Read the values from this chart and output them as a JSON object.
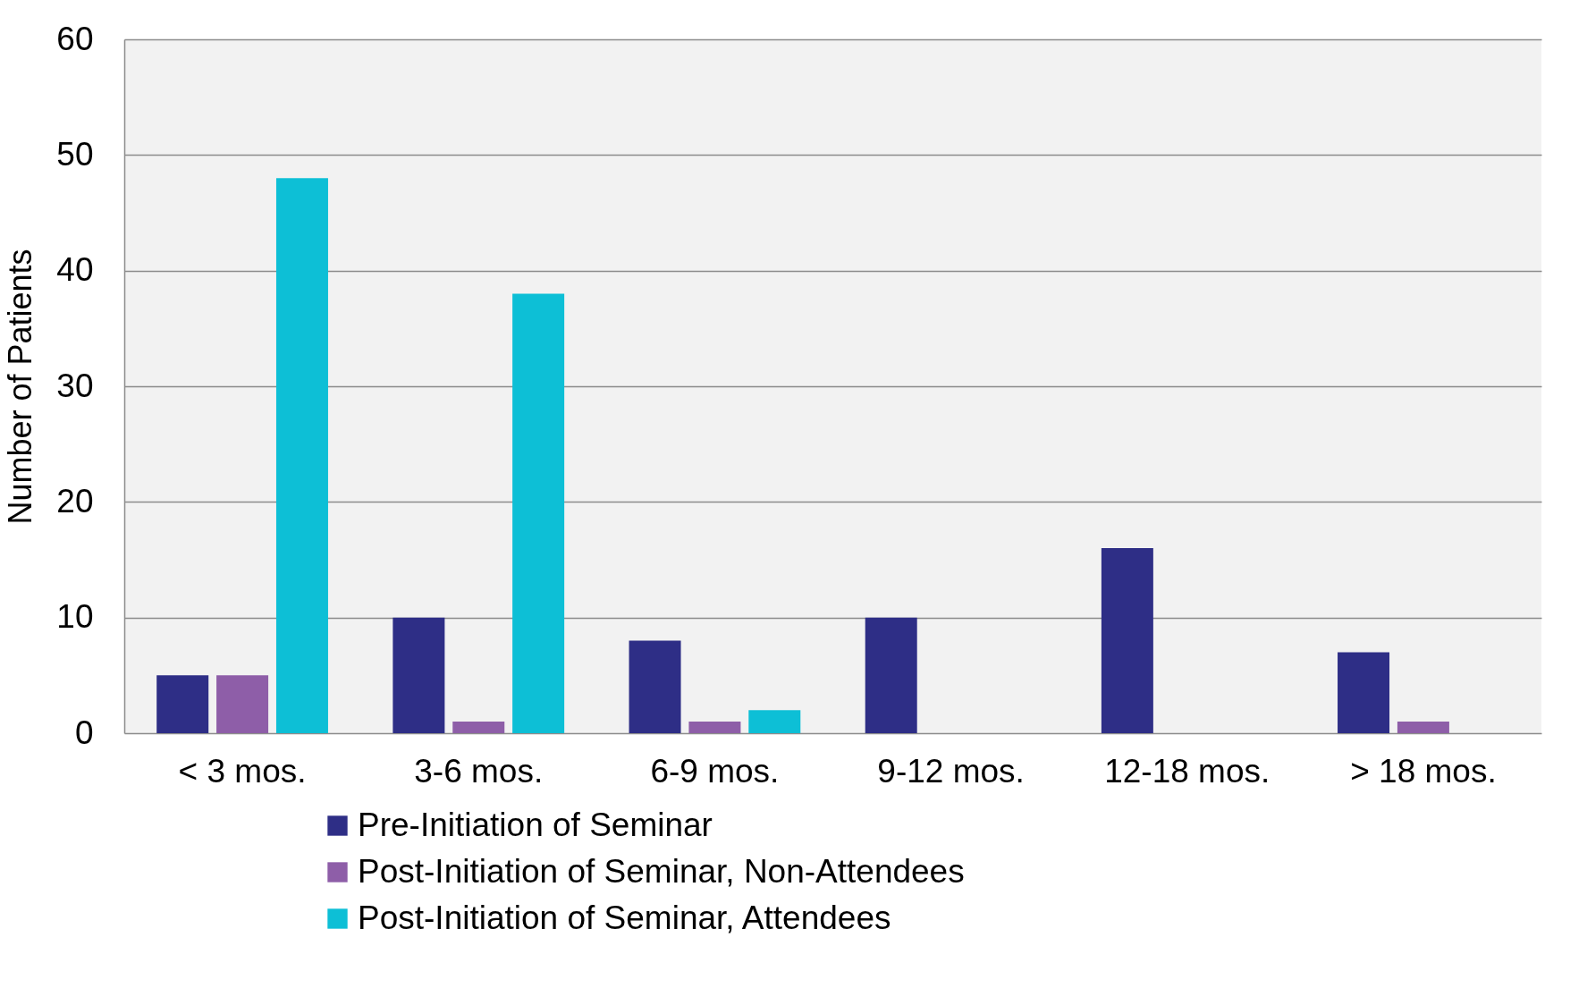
{
  "chart_data": {
    "type": "bar",
    "ylabel": "Number of Patients",
    "categories": [
      "< 3 mos.",
      "3-6 mos.",
      "6-9 mos.",
      "9-12 mos.",
      "12-18 mos.",
      "> 18 mos."
    ],
    "series": [
      {
        "name": "Pre-Initiation of Seminar",
        "color": "#2e2e86",
        "values": [
          5,
          10,
          8,
          10,
          16,
          7
        ]
      },
      {
        "name": "Post-Initiation of Seminar, Non-Attendees",
        "color": "#8e5ea8",
        "values": [
          5,
          1,
          1,
          null,
          null,
          1
        ]
      },
      {
        "name": "Post-Initiation of Seminar, Attendees",
        "color": "#0dbfd6",
        "values": [
          48,
          38,
          2,
          null,
          null,
          null
        ]
      }
    ],
    "ylim": [
      0,
      60
    ],
    "yticks": [
      0,
      10,
      20,
      30,
      40,
      50,
      60
    ],
    "grid": "y",
    "legend": "bottom"
  }
}
